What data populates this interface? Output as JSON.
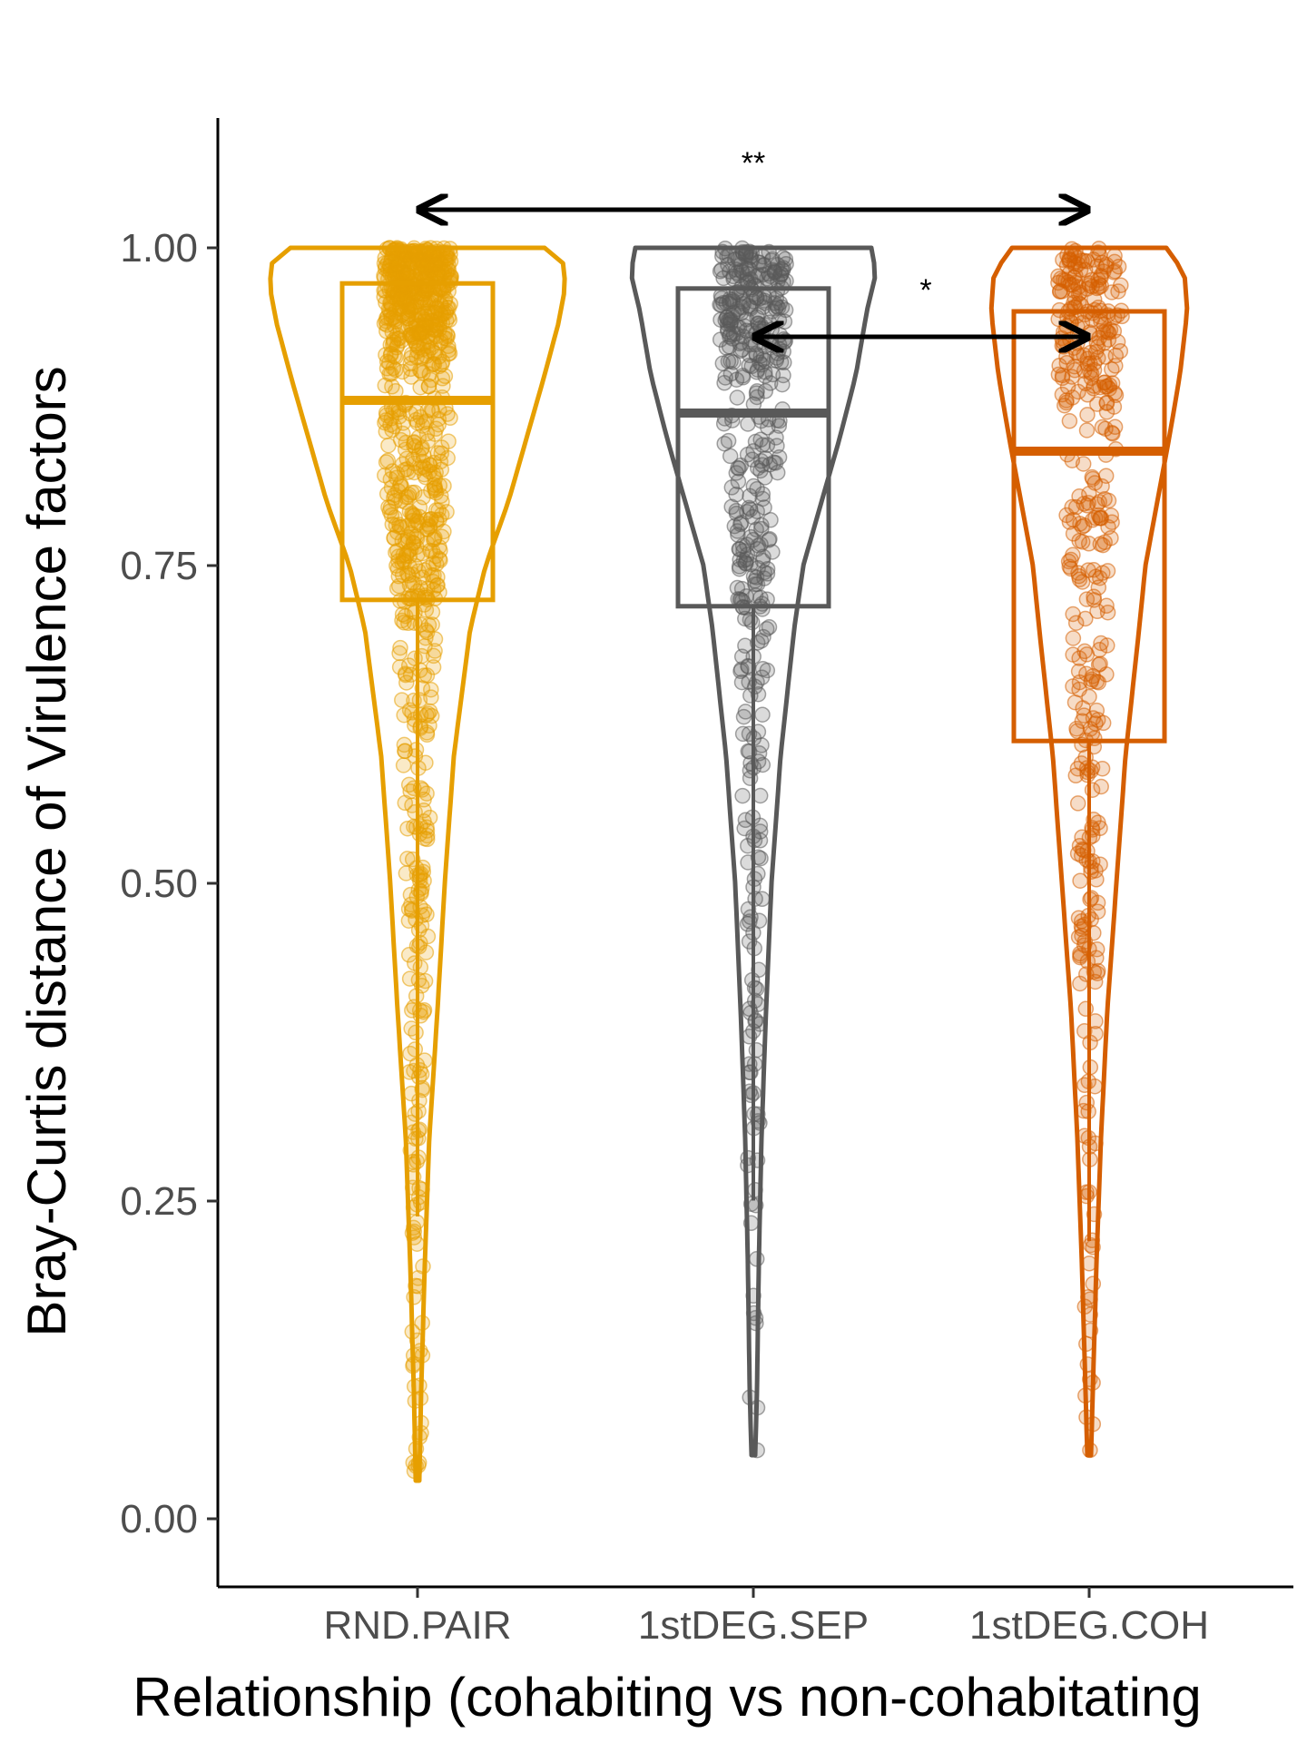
{
  "chart_data": {
    "type": "violin",
    "title": "",
    "xlabel": "Relationship (cohabiting vs non-cohabitating",
    "ylabel": "Bray-Curtis distance of Virulence factors",
    "ylim": [
      -0.05,
      1.1
    ],
    "yticks": [
      "0.00",
      "0.25",
      "0.50",
      "0.75",
      "1.00"
    ],
    "yticks_values": [
      0,
      0.25,
      0.5,
      0.75,
      1.0
    ],
    "grid": false,
    "legend": "none",
    "categories": [
      "RND.PAIR",
      "1stDEG.SEP",
      "1stDEG.COH"
    ],
    "series": [
      {
        "category": "RND.PAIR",
        "color": "#E69F00",
        "min": 0.03,
        "q1": 0.723,
        "median": 0.88,
        "q3": 0.972,
        "max": 1.0,
        "point_count": 900
      },
      {
        "category": "1stDEG.SEP",
        "color": "#595959",
        "min": 0.05,
        "q1": 0.718,
        "median": 0.87,
        "q3": 0.968,
        "max": 1.0,
        "point_count": 450
      },
      {
        "category": "1stDEG.COH",
        "color": "#D55E00",
        "min": 0.05,
        "q1": 0.612,
        "median": 0.84,
        "q3": 0.95,
        "max": 1.0,
        "point_count": 400
      }
    ],
    "annotations": [
      {
        "from": "RND.PAIR",
        "to": "1stDEG.COH",
        "y": 1.03,
        "label": "**"
      },
      {
        "from": "1stDEG.SEP",
        "to": "1stDEG.COH",
        "y": 0.93,
        "label": "*"
      }
    ]
  }
}
